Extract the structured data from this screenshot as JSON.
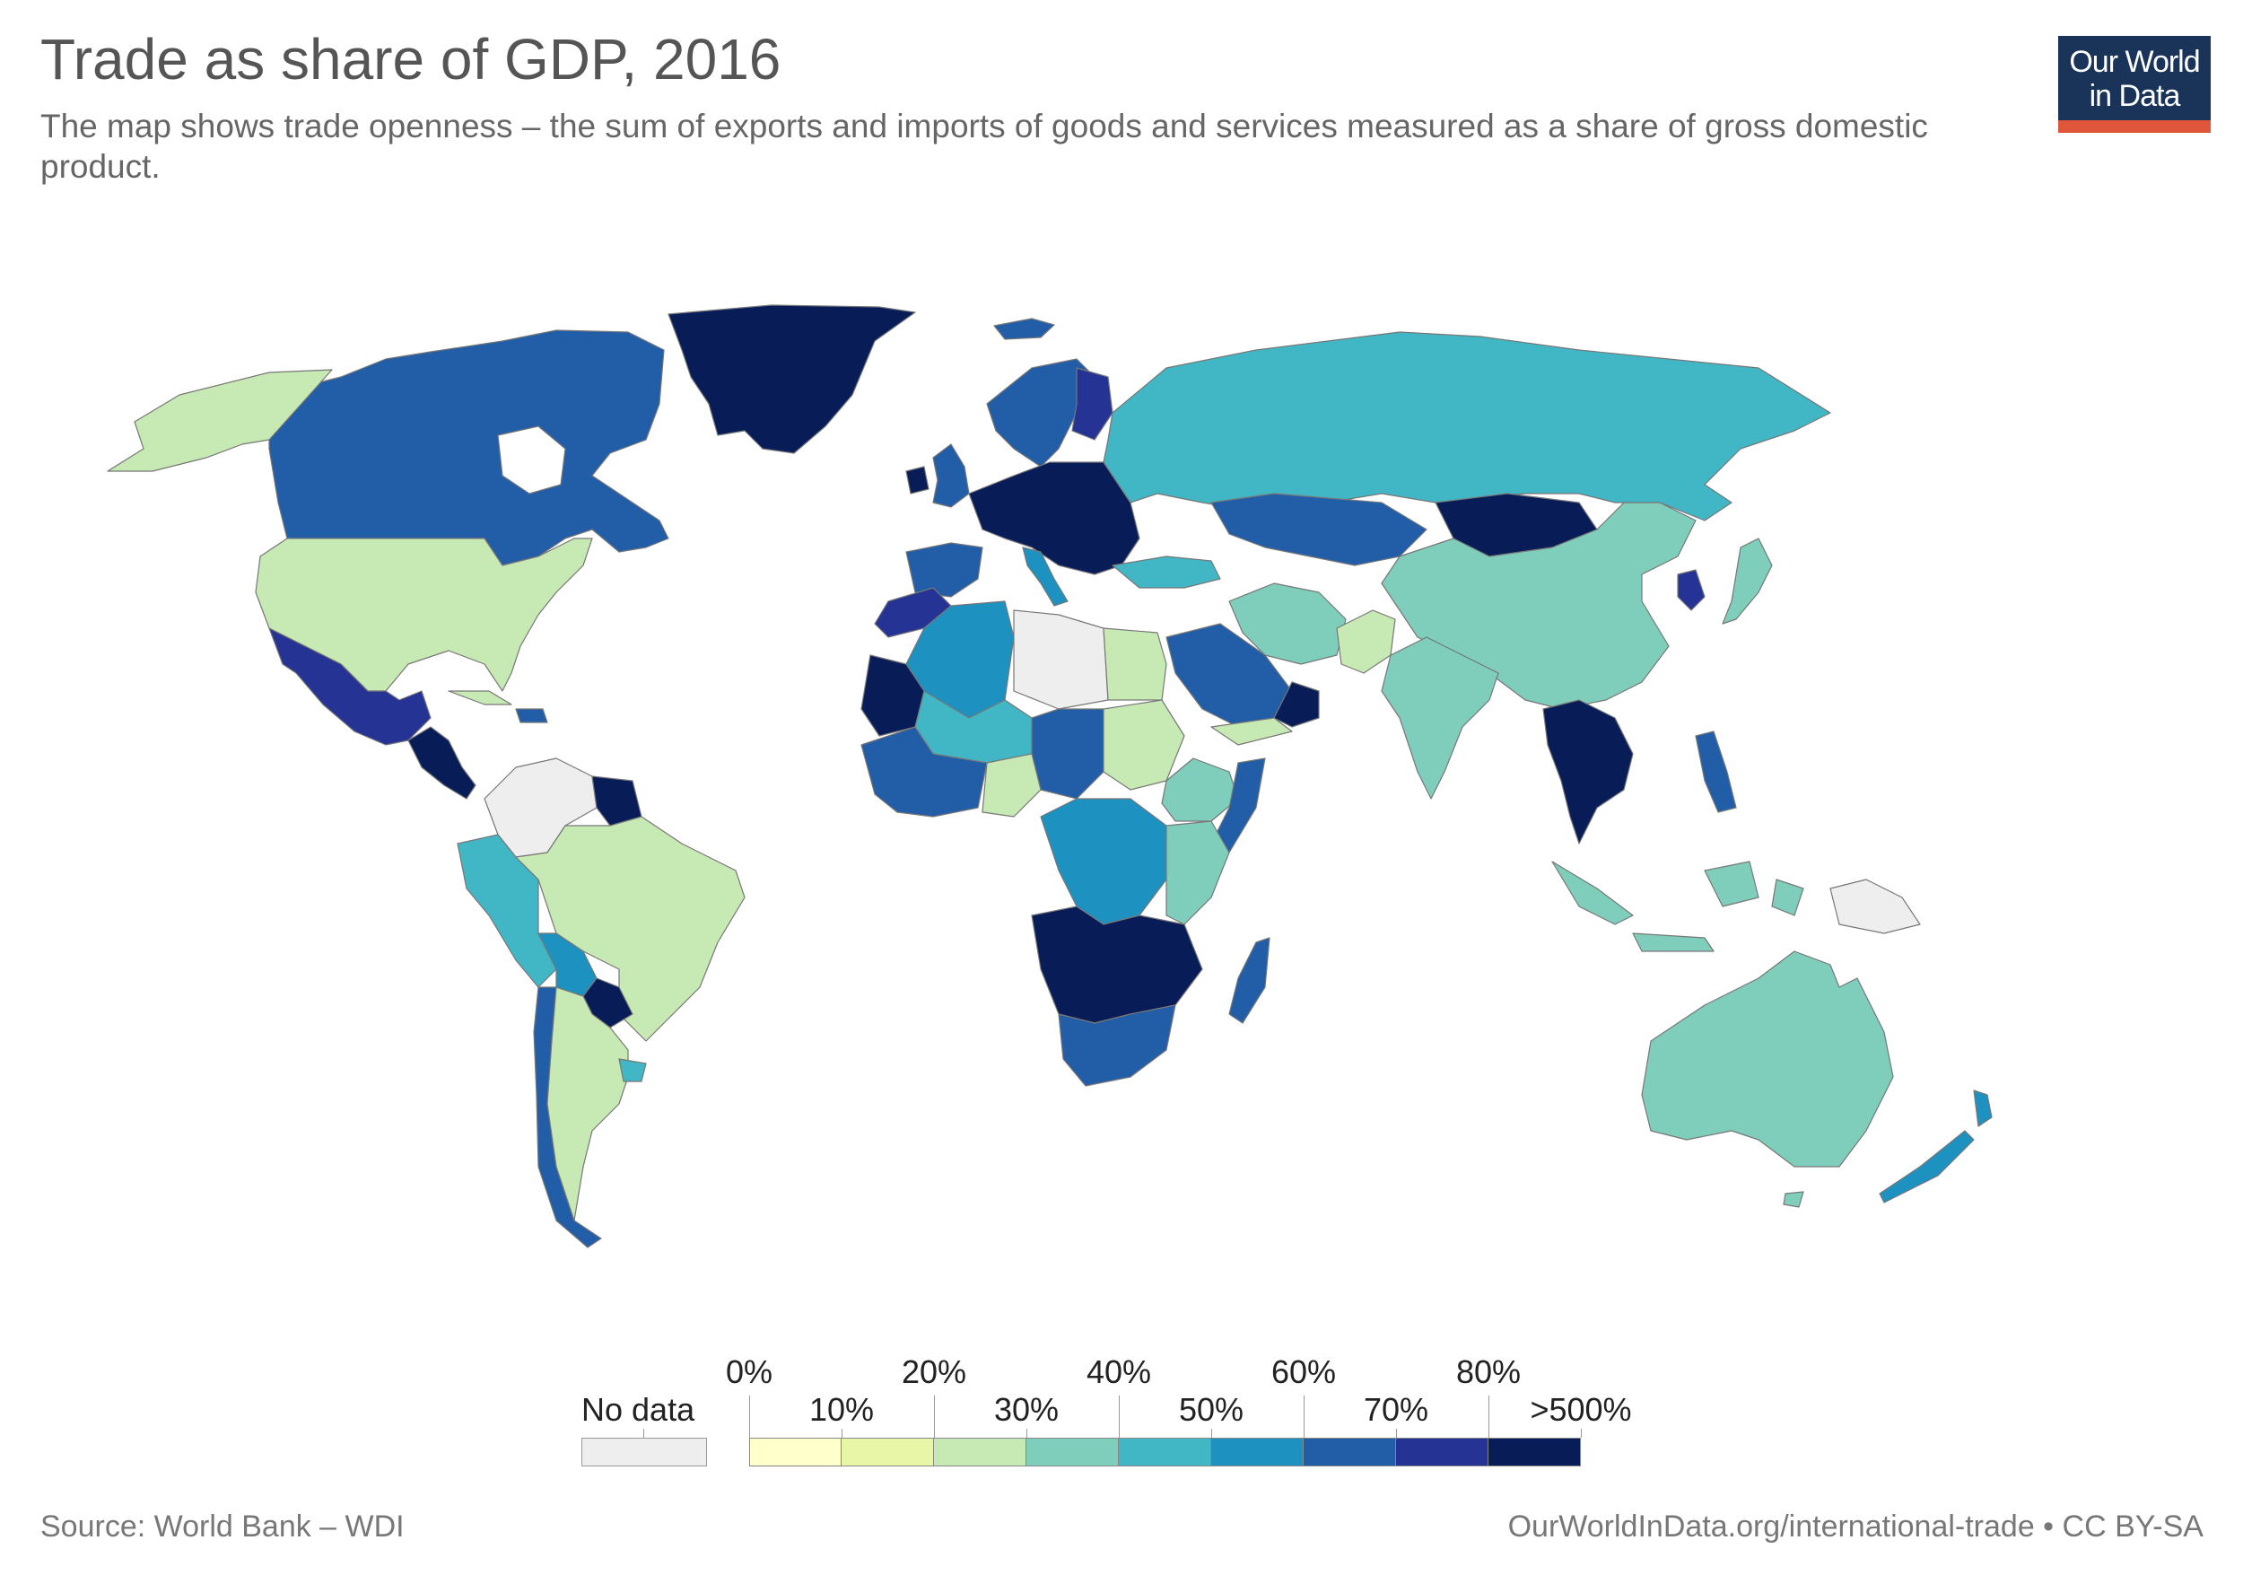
{
  "title": "Trade as share of GDP, 2016",
  "subtitle": "The map shows trade openness – the sum of exports and imports of goods and services measured as a share of gross domestic product.",
  "logo": {
    "line1": "Our World",
    "line2": "in Data",
    "bg_color": "#1a3459",
    "accent_color": "#e0563a"
  },
  "legend": {
    "no_data_label": "No data",
    "no_data_color": "#eeeeee",
    "bins": [
      {
        "label": "0%",
        "color": "#ffffcc"
      },
      {
        "label": "10%",
        "color": "#e8f6a8"
      },
      {
        "label": "20%",
        "color": "#c7e9b4"
      },
      {
        "label": "30%",
        "color": "#7fcdbb"
      },
      {
        "label": "40%",
        "color": "#41b6c4"
      },
      {
        "label": "50%",
        "color": "#1d91c0"
      },
      {
        "label": "60%",
        "color": "#225ea8"
      },
      {
        "label": "70%",
        "color": "#253494"
      },
      {
        "label": "80%",
        "color": "#081d58"
      },
      {
        "label": ">500%",
        "color": null
      }
    ]
  },
  "map_regions": [
    {
      "name": "greenland",
      "color": "#081d58"
    },
    {
      "name": "canada",
      "color": "#225ea8"
    },
    {
      "name": "alaska",
      "color": "#c7e9b4"
    },
    {
      "name": "usa",
      "color": "#c7e9b4"
    },
    {
      "name": "mexico",
      "color": "#253494"
    },
    {
      "name": "central-america",
      "color": "#081d58"
    },
    {
      "name": "colombia-venezuela",
      "color": "#eeeeee"
    },
    {
      "name": "south-america-west",
      "color": "#41b6c4"
    },
    {
      "name": "brazil",
      "color": "#c7e9b4"
    },
    {
      "name": "argentina",
      "color": "#c7e9b4"
    },
    {
      "name": "chile",
      "color": "#225ea8"
    },
    {
      "name": "bolivia",
      "color": "#1d91c0"
    },
    {
      "name": "paraguay",
      "color": "#081d58"
    },
    {
      "name": "uruguay",
      "color": "#41b6c4"
    },
    {
      "name": "guyana-suriname",
      "color": "#081d58"
    },
    {
      "name": "iceland",
      "color": "#225ea8"
    },
    {
      "name": "scandinavia",
      "color": "#225ea8"
    },
    {
      "name": "finland",
      "color": "#253494"
    },
    {
      "name": "uk-ireland",
      "color": "#225ea8"
    },
    {
      "name": "western-europe",
      "color": "#081d58"
    },
    {
      "name": "iberia",
      "color": "#225ea8"
    },
    {
      "name": "italy",
      "color": "#1d91c0"
    },
    {
      "name": "russia",
      "color": "#41b6c4"
    },
    {
      "name": "kazakhstan",
      "color": "#225ea8"
    },
    {
      "name": "mongolia",
      "color": "#081d58"
    },
    {
      "name": "china",
      "color": "#7fcdbb"
    },
    {
      "name": "india",
      "color": "#7fcdbb"
    },
    {
      "name": "pakistan",
      "color": "#c7e9b4"
    },
    {
      "name": "iran",
      "color": "#7fcdbb"
    },
    {
      "name": "turkey",
      "color": "#41b6c4"
    },
    {
      "name": "saudi-arabia",
      "color": "#225ea8"
    },
    {
      "name": "oman-uae",
      "color": "#081d58"
    },
    {
      "name": "yemen",
      "color": "#c7e9b4"
    },
    {
      "name": "north-africa-west",
      "color": "#253494"
    },
    {
      "name": "algeria",
      "color": "#1d91c0"
    },
    {
      "name": "libya",
      "color": "#eeeeee"
    },
    {
      "name": "egypt",
      "color": "#c7e9b4"
    },
    {
      "name": "mauritania",
      "color": "#081d58"
    },
    {
      "name": "sahel",
      "color": "#41b6c4"
    },
    {
      "name": "chad-car",
      "color": "#225ea8"
    },
    {
      "name": "sudan",
      "color": "#c7e9b4"
    },
    {
      "name": "west-africa",
      "color": "#225ea8"
    },
    {
      "name": "nigeria",
      "color": "#c7e9b4"
    },
    {
      "name": "horn-of-africa",
      "color": "#7fcdbb"
    },
    {
      "name": "somalia",
      "color": "#225ea8"
    },
    {
      "name": "central-africa",
      "color": "#1d91c0"
    },
    {
      "name": "east-africa",
      "color": "#7fcdbb"
    },
    {
      "name": "southern-africa-west",
      "color": "#081d58"
    },
    {
      "name": "south-africa",
      "color": "#225ea8"
    },
    {
      "name": "madagascar",
      "color": "#225ea8"
    },
    {
      "name": "southeast-asia",
      "color": "#081d58"
    },
    {
      "name": "indonesia",
      "color": "#7fcdbb"
    },
    {
      "name": "philippines",
      "color": "#225ea8"
    },
    {
      "name": "japan",
      "color": "#7fcdbb"
    },
    {
      "name": "korea",
      "color": "#253494"
    },
    {
      "name": "australia",
      "color": "#7fcdbb"
    },
    {
      "name": "new-zealand",
      "color": "#1d91c0"
    },
    {
      "name": "papua",
      "color": "#eeeeee"
    }
  ],
  "source": "Source: World Bank – WDI",
  "attribution": "OurWorldInData.org/international-trade • CC BY-SA"
}
